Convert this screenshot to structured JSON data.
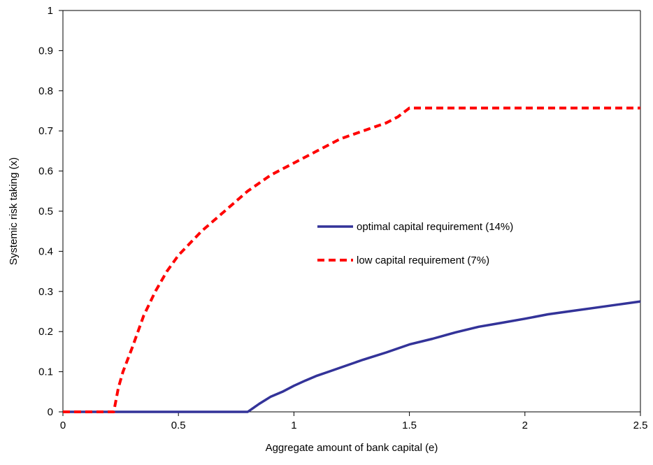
{
  "chart_data": {
    "type": "line",
    "title": "",
    "xlabel": "Aggregate amount of bank capital (e)",
    "ylabel": "Systemic risk taking (x)",
    "xlim": [
      0,
      2.5
    ],
    "ylim": [
      0,
      1
    ],
    "x_ticks": [
      "0",
      "0.5",
      "1",
      "1.5",
      "2",
      "2.5"
    ],
    "y_ticks": [
      "0",
      "0.1",
      "0.2",
      "0.3",
      "0.4",
      "0.5",
      "0.6",
      "0.7",
      "0.8",
      "0.9",
      "1"
    ],
    "x_tick_values": [
      0,
      0.5,
      1,
      1.5,
      2,
      2.5
    ],
    "y_tick_values": [
      0,
      0.1,
      0.2,
      0.3,
      0.4,
      0.5,
      0.6,
      0.7,
      0.8,
      0.9,
      1
    ],
    "grid": false,
    "legend_position": "center-right",
    "series": [
      {
        "name": "optimal capital requirement (14%)",
        "style": "solid",
        "color": "#333399",
        "x": [
          0,
          0.2,
          0.4,
          0.6,
          0.8,
          0.82,
          0.85,
          0.9,
          0.95,
          1.0,
          1.05,
          1.1,
          1.15,
          1.2,
          1.3,
          1.4,
          1.5,
          1.6,
          1.7,
          1.8,
          1.9,
          2.0,
          2.1,
          2.2,
          2.3,
          2.4,
          2.5
        ],
        "y": [
          0,
          0,
          0,
          0,
          0,
          0.008,
          0.02,
          0.038,
          0.05,
          0.065,
          0.078,
          0.09,
          0.1,
          0.11,
          0.13,
          0.148,
          0.168,
          0.182,
          0.198,
          0.212,
          0.222,
          0.232,
          0.243,
          0.251,
          0.259,
          0.267,
          0.275
        ]
      },
      {
        "name": "low capital requirement (7%)",
        "style": "dashed",
        "color": "#ff0000",
        "x": [
          0,
          0.1,
          0.2,
          0.22,
          0.24,
          0.26,
          0.28,
          0.3,
          0.35,
          0.4,
          0.45,
          0.5,
          0.55,
          0.6,
          0.7,
          0.8,
          0.9,
          1.0,
          1.1,
          1.2,
          1.3,
          1.4,
          1.45,
          1.5,
          1.6,
          1.8,
          2.0,
          2.2,
          2.4,
          2.5
        ],
        "y": [
          0,
          0,
          0,
          0,
          0.06,
          0.1,
          0.13,
          0.16,
          0.24,
          0.3,
          0.35,
          0.39,
          0.42,
          0.45,
          0.5,
          0.55,
          0.59,
          0.62,
          0.65,
          0.68,
          0.7,
          0.72,
          0.735,
          0.757,
          0.757,
          0.757,
          0.757,
          0.757,
          0.757,
          0.757
        ]
      }
    ]
  }
}
